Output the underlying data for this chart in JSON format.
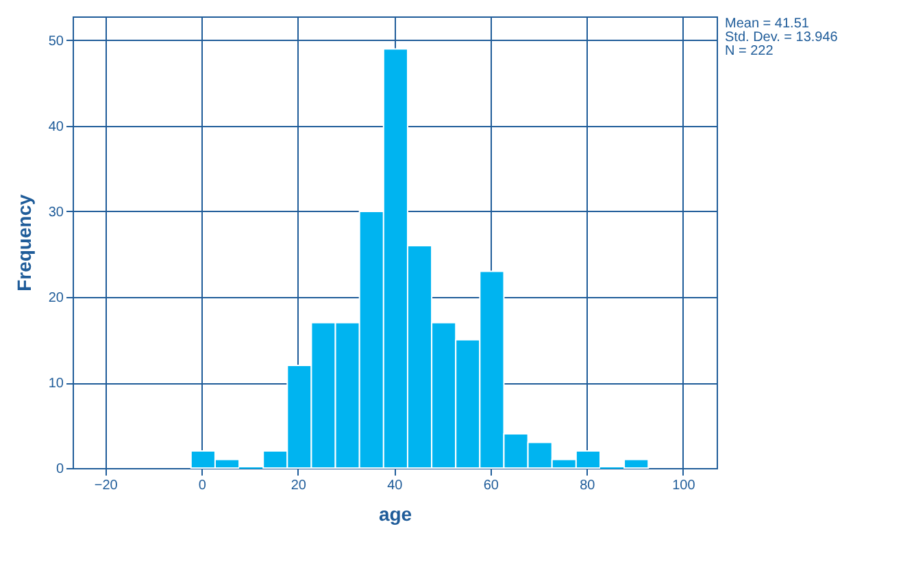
{
  "chart_data": {
    "type": "histogram",
    "xlabel": "age",
    "ylabel": "Frequency",
    "bins": [
      -2.2,
      2.8,
      7.8,
      12.8,
      17.8,
      22.8,
      27.8,
      32.8,
      37.8,
      42.8,
      47.8,
      52.8,
      57.8,
      62.8,
      67.8,
      72.8,
      77.8,
      82.8,
      87.8,
      92.8
    ],
    "values": [
      2,
      1,
      0,
      2,
      12,
      17,
      17,
      30,
      49,
      26,
      17,
      15,
      23,
      4,
      3,
      1,
      2,
      0,
      1
    ],
    "color": "#00b4f0",
    "xlim": [
      -26.8,
      107
    ],
    "xticks": [
      -20,
      0,
      20,
      40,
      60,
      80,
      100
    ],
    "ylim": [
      0,
      52.8
    ],
    "yticks": [
      0,
      10,
      20,
      30,
      40,
      50
    ],
    "grid": true,
    "annotations": [
      "Mean = 41.51",
      "Std. Dev. = 13.946",
      "N = 222"
    ]
  }
}
